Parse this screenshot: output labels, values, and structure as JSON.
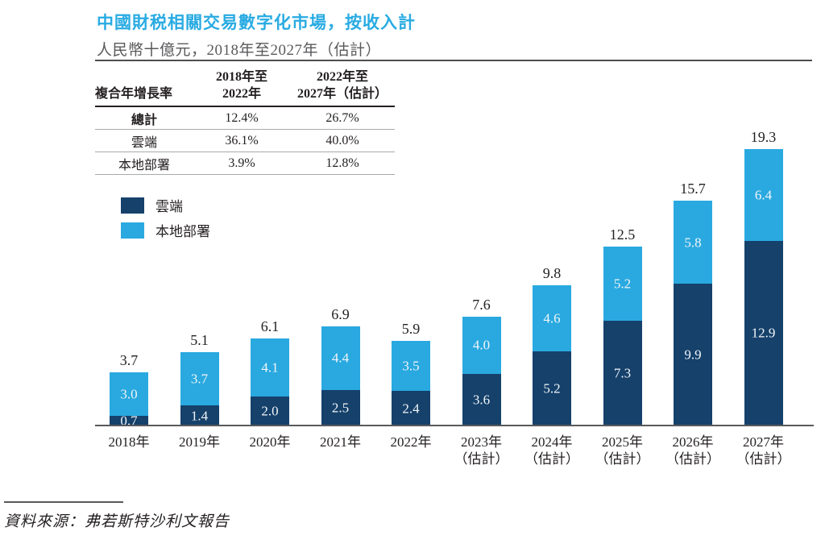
{
  "header": {
    "title": "中國財税相關交易數字化市場，按收入計",
    "subtitle": "人民幣十億元，2018年至2027年（估計）"
  },
  "theme": {
    "title_color": "#29abe2",
    "cloud_color": "#15416b",
    "onprem_color": "#29a9e0"
  },
  "cagr_table": {
    "header": {
      "row_label": "複合年增長率",
      "col_1": "2018年至\n2022年",
      "col_2": "2022年至\n2027年（估計）"
    },
    "rows": [
      {
        "label": "總計",
        "period_1": "12.4%",
        "period_2": "26.7%"
      },
      {
        "label": "雲端",
        "period_1": "36.1%",
        "period_2": "40.0%"
      },
      {
        "label": "本地部署",
        "period_1": "3.9%",
        "period_2": "12.8%"
      }
    ]
  },
  "chart_data": {
    "type": "bar",
    "stacked": true,
    "title": "中國財税相關交易數字化市場，按收入計",
    "unit": "人民幣十億元",
    "legend_position": "upper-left",
    "categories": [
      {
        "label": "2018年",
        "note": ""
      },
      {
        "label": "2019年",
        "note": ""
      },
      {
        "label": "2020年",
        "note": ""
      },
      {
        "label": "2021年",
        "note": ""
      },
      {
        "label": "2022年",
        "note": ""
      },
      {
        "label": "2023年",
        "note": "（估計）"
      },
      {
        "label": "2024年",
        "note": "（估計）"
      },
      {
        "label": "2025年",
        "note": "（估計）"
      },
      {
        "label": "2026年",
        "note": "（估計）"
      },
      {
        "label": "2027年",
        "note": "（估計）"
      }
    ],
    "series": [
      {
        "name": "雲端",
        "color": "#15416b",
        "values": [
          0.7,
          1.4,
          2.0,
          2.5,
          2.4,
          3.6,
          5.2,
          7.3,
          9.9,
          12.9
        ]
      },
      {
        "name": "本地部署",
        "color": "#29a9e0",
        "values": [
          3.0,
          3.7,
          4.1,
          4.4,
          3.5,
          4.0,
          4.6,
          5.2,
          5.8,
          6.4
        ]
      }
    ],
    "totals": [
      3.7,
      5.1,
      6.1,
      6.9,
      5.9,
      7.6,
      9.8,
      12.5,
      15.7,
      19.3
    ],
    "ylim": [
      0,
      20
    ]
  },
  "source": {
    "text": "資料來源：弗若斯特沙利文報告"
  }
}
